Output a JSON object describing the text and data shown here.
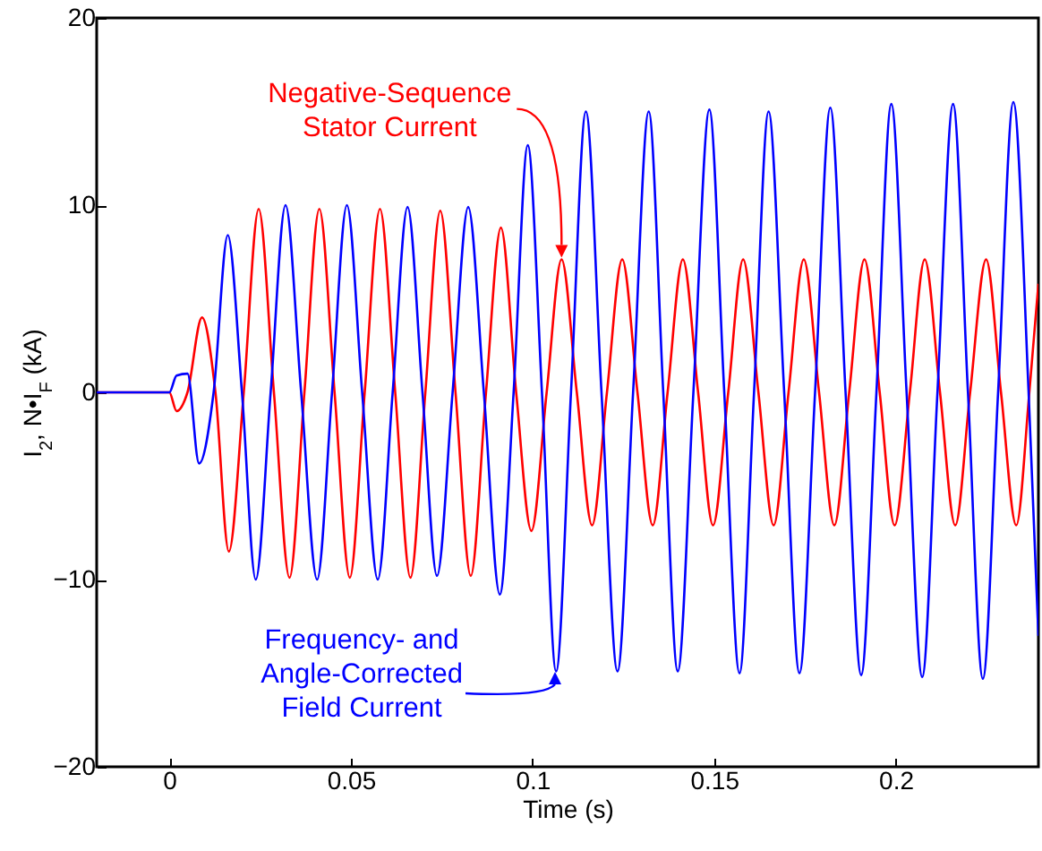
{
  "chart_data": {
    "type": "line",
    "xlabel": "Time (s)",
    "ylabel": "I$_{2}$, N•I$_{F}$ (kA)",
    "xlim": [
      -0.02,
      0.2393
    ],
    "ylim": [
      -20,
      20
    ],
    "xticks": [
      0,
      0.05,
      0.1,
      0.15,
      0.2
    ],
    "yticks": [
      -20,
      -10,
      0,
      10,
      20
    ],
    "grid": false,
    "marker": "none",
    "line_style": "solid",
    "annotations": [
      {
        "text": "Negative-Sequence\nStator Current",
        "x": 0.108,
        "y": 7.1
      },
      "Frequency- and\nAngle-Corrected\nField Current"
    ],
    "series": [
      {
        "color": "#ff0000",
        "x": [
          -0.02,
          0,
          0.002,
          0.005,
          0.009,
          0.0127,
          0.0164,
          0.0205,
          0.0246,
          0.0288,
          0.0331,
          0.0372,
          0.0413,
          0.0455,
          0.0497,
          0.0538,
          0.058,
          0.0622,
          0.0664,
          0.0705,
          0.0746,
          0.0788,
          0.083,
          0.0872,
          0.0913,
          0.0955,
          0.0997,
          0.1039,
          0.108,
          0.1122,
          0.1164,
          0.1205,
          0.1247,
          0.1289,
          0.1331,
          0.1372,
          0.1414,
          0.1456,
          0.1497,
          0.1539,
          0.158,
          0.1622,
          0.1664,
          0.1705,
          0.1747,
          0.1789,
          0.1831,
          0.1872,
          0.1914,
          0.1956,
          0.1997,
          0.2039,
          0.208,
          0.2122,
          0.2164,
          0.2205,
          0.2249,
          0.229,
          0.2332,
          0.2368,
          0.2393
        ],
        "values": [
          0,
          0,
          -1.0,
          0,
          4.0,
          0,
          -8.5,
          0,
          9.8,
          0,
          -9.9,
          0,
          9.8,
          0,
          -9.9,
          0,
          9.8,
          0,
          -9.9,
          0,
          9.7,
          0,
          -9.8,
          0,
          8.8,
          0,
          -7.4,
          0,
          7.1,
          0,
          -7.1,
          0,
          7.1,
          0,
          -7.1,
          0,
          7.1,
          0,
          -7.1,
          0,
          7.1,
          0,
          -7.1,
          0,
          7.1,
          0,
          -7.1,
          0,
          7.1,
          0,
          -7.1,
          0,
          7.1,
          0,
          -7.1,
          0,
          7.1,
          0,
          -7.1,
          0,
          5.8
        ]
      },
      {
        "color": "#0000ff",
        "x": [
          -0.02,
          0,
          0.002,
          0.005,
          0.0082,
          0.0122,
          0.0161,
          0.02,
          0.0238,
          0.0279,
          0.032,
          0.0363,
          0.0407,
          0.0448,
          0.0489,
          0.0531,
          0.0574,
          0.0615,
          0.0656,
          0.0697,
          0.0737,
          0.078,
          0.0823,
          0.0866,
          0.091,
          0.0948,
          0.0987,
          0.1026,
          0.1065,
          0.1106,
          0.1147,
          0.119,
          0.1234,
          0.1277,
          0.132,
          0.136,
          0.14,
          0.1443,
          0.1487,
          0.1528,
          0.157,
          0.161,
          0.165,
          0.1693,
          0.1735,
          0.1778,
          0.182,
          0.1862,
          0.1905,
          0.1947,
          0.1988,
          0.203,
          0.2073,
          0.2115,
          0.2158,
          0.2199,
          0.224,
          0.2282,
          0.2324,
          0.2366,
          0.2393
        ],
        "values": [
          0,
          0,
          0.9,
          1.0,
          -3.8,
          0,
          8.4,
          0,
          -10.0,
          0,
          10.0,
          0,
          -10.0,
          0,
          10.0,
          0,
          -10.0,
          0,
          9.9,
          0,
          -9.8,
          0,
          9.9,
          0,
          -10.8,
          0,
          13.2,
          0,
          -14.9,
          0,
          15.0,
          0,
          -14.9,
          0,
          15.0,
          0,
          -14.9,
          0,
          15.1,
          0,
          -15.0,
          0,
          15.0,
          0,
          -15.0,
          0,
          15.2,
          0,
          -15.1,
          0,
          15.4,
          0,
          -15.2,
          0,
          15.4,
          0,
          -15.3,
          0,
          15.5,
          0,
          -13
        ]
      }
    ]
  }
}
